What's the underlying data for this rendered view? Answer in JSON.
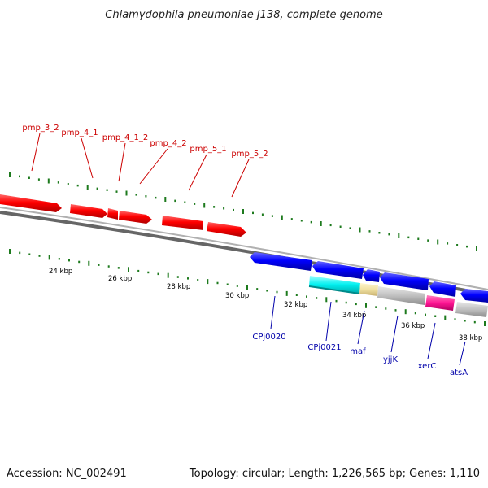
{
  "title": "Chlamydophila pneumoniae J138, complete genome",
  "footer": {
    "accession": "Accession: NC_002491",
    "topology": "Topology: circular; Length: 1,226,565 bp; Genes: 1,110"
  },
  "scale_labels": [
    "24 kbp",
    "26 kbp",
    "28 kbp",
    "30 kbp",
    "32 kbp",
    "34 kbp",
    "36 kbp",
    "38 kbp"
  ],
  "colors": {
    "forward_gene": "#ff0000",
    "reverse_gene": "#0000ff",
    "backbone": "#808080",
    "tick": "#1d7a1d",
    "forward_label": "#cc0000",
    "reverse_label": "#0000aa",
    "cyan_feature": "#00ffff",
    "yellow_feature": "#f0e0a0",
    "grey_feature": "#c0c0c0",
    "magenta_feature": "#ff1493"
  },
  "forward_genes": [
    "pmp_3_2",
    "pmp_4_1",
    "pmp_4_1_2",
    "pmp_4_2",
    "pmp_5_1",
    "pmp_5_2"
  ],
  "reverse_genes": [
    "CPj0020",
    "CPj0021",
    "maf",
    "yjjK",
    "xerC",
    "atsA"
  ]
}
